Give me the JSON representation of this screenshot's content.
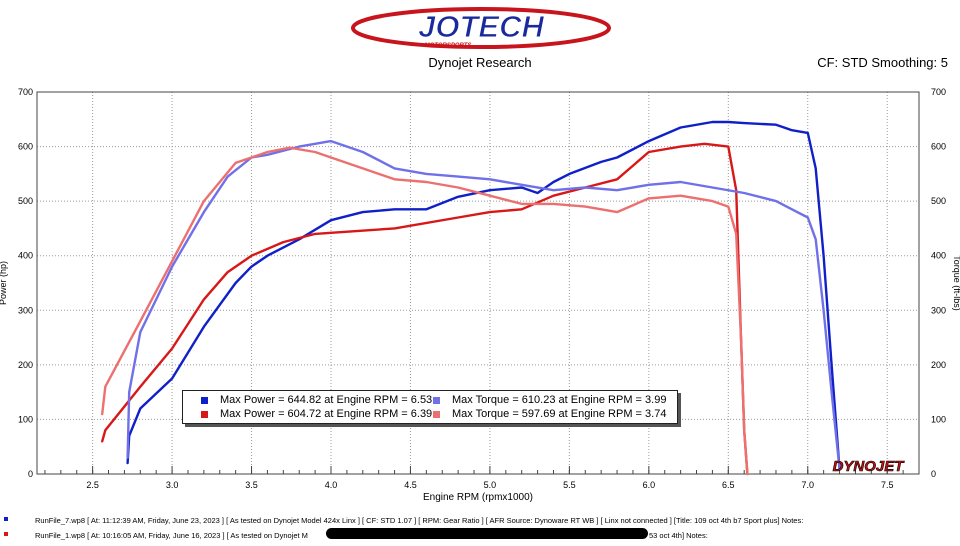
{
  "header": {
    "logo_text": "JOTECH",
    "logo_subtext": "MOTORSPORTS",
    "title": "Dynojet Research",
    "cf": "CF: STD Smoothing: 5"
  },
  "legend": [
    {
      "label": "Max Power = 644.82 at Engine RPM = 6.53",
      "color": "#1020c8"
    },
    {
      "label": "Max Power = 604.72 at Engine RPM = 6.39",
      "color": "#d81818"
    },
    {
      "label": "Max Torque = 610.23 at Engine RPM = 3.99",
      "color": "#7070e8"
    },
    {
      "label": "Max Torque = 597.69 at Engine RPM = 3.74",
      "color": "#ec7070"
    }
  ],
  "watermark": "DYNOJET",
  "footer": {
    "line1": "RunFile_7.wp8 [ At: 11:12:39 AM, Friday, June 23, 2023 ] [ As tested on Dynojet Model 424x Linx ] [ CF: STD 1.07 ] [ RPM: Gear Ratio ] [ AFR Source: Dynoware RT WB ] [ Linx not connected ] [Title: 109 oct 4th b7 Sport plus]  Notes:",
    "line2a": "RunFile_1.wp8 [ At: 10:16:05 AM, Friday, June 16, 2023 ] [ As tested on Dynojet M",
    "line2b": "53 oct 4th]  Notes:"
  },
  "chart_data": {
    "type": "line",
    "title": "",
    "xlabel": "Engine RPM (rpmx1000)",
    "ylabel": "Power (hp)",
    "ylabel_right": "Torque (ft-lbs)",
    "xlim": [
      2.15,
      7.7
    ],
    "ylim": [
      0,
      700
    ],
    "x_ticks": [
      2.5,
      3.0,
      3.5,
      4.0,
      4.5,
      5.0,
      5.5,
      6.0,
      6.5,
      7.0,
      7.5
    ],
    "y_ticks": [
      0,
      100,
      200,
      300,
      400,
      500,
      600,
      700
    ],
    "grid": true,
    "legend_position": "bottom-center",
    "series": [
      {
        "name": "Max Power = 644.82 at Engine RPM = 6.53",
        "color": "#1020c8",
        "x": [
          2.72,
          2.73,
          2.8,
          3.0,
          3.2,
          3.4,
          3.5,
          3.6,
          3.8,
          4.0,
          4.2,
          4.4,
          4.6,
          4.8,
          5.0,
          5.2,
          5.3,
          5.4,
          5.5,
          5.7,
          5.8,
          6.0,
          6.2,
          6.4,
          6.5,
          6.6,
          6.8,
          6.9,
          7.0,
          7.05,
          7.1,
          7.15,
          7.2
        ],
        "y": [
          20,
          70,
          120,
          175,
          270,
          350,
          380,
          400,
          430,
          465,
          480,
          485,
          485,
          508,
          520,
          525,
          515,
          535,
          550,
          572,
          580,
          610,
          635,
          645,
          645,
          643,
          640,
          630,
          625,
          560,
          400,
          200,
          10
        ]
      },
      {
        "name": "Max Power = 604.72 at Engine RPM = 6.39",
        "color": "#d81818",
        "x": [
          2.56,
          2.58,
          2.8,
          3.0,
          3.2,
          3.35,
          3.5,
          3.7,
          3.9,
          4.0,
          4.4,
          4.8,
          5.0,
          5.2,
          5.4,
          5.6,
          5.8,
          6.0,
          6.2,
          6.35,
          6.5,
          6.55,
          6.58,
          6.6,
          6.62
        ],
        "y": [
          60,
          80,
          160,
          230,
          320,
          370,
          400,
          425,
          440,
          442,
          450,
          470,
          480,
          485,
          510,
          525,
          540,
          590,
          600,
          605,
          600,
          520,
          250,
          80,
          0
        ]
      },
      {
        "name": "Max Torque = 610.23 at Engine RPM = 3.99",
        "color": "#7070e8",
        "x": [
          2.72,
          2.73,
          2.8,
          3.0,
          3.2,
          3.35,
          3.5,
          3.6,
          3.8,
          4.0,
          4.2,
          4.4,
          4.6,
          4.8,
          5.0,
          5.2,
          5.4,
          5.6,
          5.8,
          6.0,
          6.2,
          6.4,
          6.6,
          6.8,
          6.9,
          7.0,
          7.05,
          7.1,
          7.15,
          7.2
        ],
        "y": [
          30,
          150,
          260,
          380,
          480,
          545,
          580,
          585,
          600,
          610,
          590,
          560,
          550,
          545,
          540,
          530,
          520,
          525,
          520,
          530,
          535,
          525,
          515,
          500,
          485,
          470,
          430,
          300,
          150,
          10
        ]
      },
      {
        "name": "Max Torque = 597.69 at Engine RPM = 3.74",
        "color": "#ec7070",
        "x": [
          2.56,
          2.58,
          2.8,
          3.0,
          3.2,
          3.4,
          3.6,
          3.74,
          3.9,
          4.0,
          4.2,
          4.4,
          4.6,
          4.8,
          5.0,
          5.2,
          5.4,
          5.6,
          5.8,
          6.0,
          6.2,
          6.4,
          6.5,
          6.55,
          6.58,
          6.6,
          6.62
        ],
        "y": [
          110,
          160,
          280,
          390,
          500,
          570,
          590,
          598,
          590,
          580,
          560,
          540,
          535,
          525,
          510,
          495,
          495,
          490,
          480,
          505,
          510,
          500,
          490,
          440,
          250,
          80,
          0
        ]
      }
    ]
  }
}
